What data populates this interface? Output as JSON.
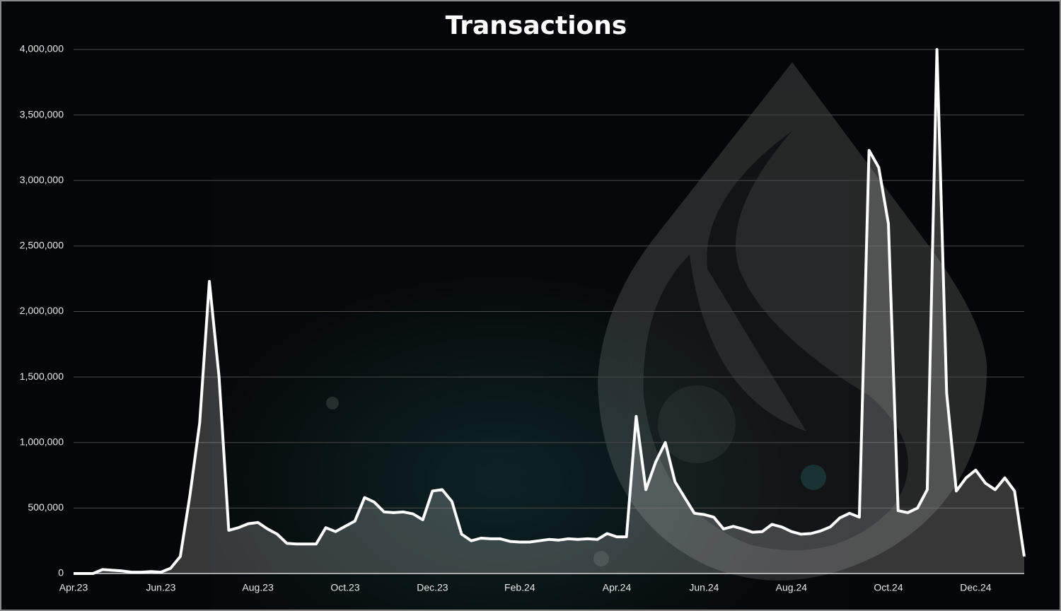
{
  "chart_data": {
    "type": "area",
    "title": "Transactions",
    "categories": [
      "Apr.23",
      null,
      null,
      null,
      null,
      null,
      null,
      null,
      null,
      "Jun.23",
      null,
      null,
      null,
      null,
      null,
      null,
      null,
      null,
      null,
      "Aug.23",
      null,
      null,
      null,
      null,
      null,
      null,
      null,
      null,
      "Oct.23",
      null,
      null,
      null,
      null,
      null,
      null,
      null,
      null,
      "Dec.23",
      null,
      null,
      null,
      null,
      null,
      null,
      null,
      null,
      "Feb.24",
      null,
      null,
      null,
      null,
      null,
      null,
      null,
      null,
      null,
      "Apr.24",
      null,
      null,
      null,
      null,
      null,
      null,
      null,
      null,
      "Jun.24",
      null,
      null,
      null,
      null,
      null,
      null,
      null,
      null,
      "Aug.24",
      null,
      null,
      null,
      null,
      null,
      null,
      null,
      null,
      null,
      "Oct.24",
      null,
      null,
      null,
      null,
      null,
      null,
      null,
      null,
      "Dec.24",
      null,
      null,
      null,
      null,
      null
    ],
    "series": [
      {
        "name": "Transactions",
        "color": "#ffffff",
        "values": [
          0,
          0,
          0,
          30000,
          25000,
          20000,
          10000,
          10000,
          15000,
          10000,
          40000,
          130000,
          600000,
          1150000,
          2230000,
          1500000,
          330000,
          350000,
          380000,
          390000,
          340000,
          300000,
          230000,
          225000,
          225000,
          225000,
          350000,
          320000,
          360000,
          400000,
          580000,
          545000,
          470000,
          465000,
          470000,
          455000,
          410000,
          630000,
          640000,
          550000,
          300000,
          250000,
          270000,
          265000,
          265000,
          245000,
          240000,
          240000,
          250000,
          260000,
          255000,
          265000,
          260000,
          265000,
          260000,
          305000,
          280000,
          280000,
          1200000,
          640000,
          850000,
          1000000,
          700000,
          580000,
          460000,
          450000,
          430000,
          340000,
          360000,
          340000,
          315000,
          320000,
          375000,
          355000,
          320000,
          300000,
          305000,
          325000,
          355000,
          425000,
          460000,
          430000,
          3230000,
          3100000,
          2670000,
          480000,
          465000,
          500000,
          640000,
          4000000,
          1380000,
          630000,
          730000,
          790000,
          690000,
          640000,
          730000,
          630000,
          130000
        ]
      }
    ],
    "ylim": [
      0,
      4000000
    ],
    "yticks": [
      0,
      {
        "value": 500000,
        "label": "500,000"
      },
      {
        "value": 1000000,
        "label": "1,000,000"
      },
      {
        "value": 1500000,
        "label": "1,500,000"
      },
      {
        "value": 2000000,
        "label": "2,000,000"
      },
      {
        "value": 2500000,
        "label": "2,500,000"
      },
      {
        "value": 3000000,
        "label": "3,000,000"
      },
      {
        "value": 3500000,
        "label": "3,500,000"
      },
      {
        "value": 4000000,
        "label": "4,000,000"
      }
    ],
    "grid": true
  }
}
